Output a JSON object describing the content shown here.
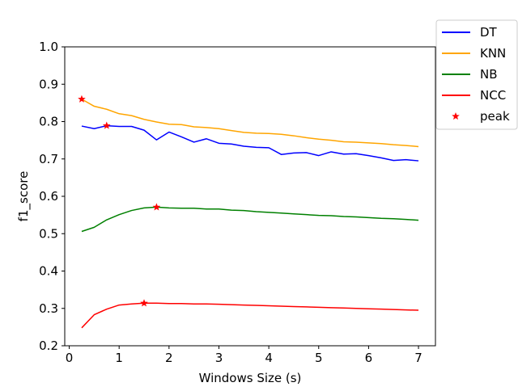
{
  "chart_data": {
    "type": "line",
    "title": "",
    "xlabel": "Windows Size (s)",
    "ylabel": "f1_score",
    "xlim": [
      -0.09,
      7.34
    ],
    "ylim": [
      0.2,
      1.0
    ],
    "xticks": [
      0,
      1,
      2,
      3,
      4,
      5,
      6,
      7
    ],
    "xtick_labels": [
      "0",
      "1",
      "2",
      "3",
      "4",
      "5",
      "6",
      "7"
    ],
    "yticks": [
      0.2,
      0.3,
      0.4,
      0.5,
      0.6,
      0.7,
      0.8,
      0.9,
      1.0
    ],
    "ytick_labels": [
      "0.2",
      "0.3",
      "0.4",
      "0.5",
      "0.6",
      "0.7",
      "0.8",
      "0.9",
      "1.0"
    ],
    "grid": false,
    "legend_position": "outside top-right",
    "x": [
      0.25,
      0.5,
      0.75,
      1.0,
      1.25,
      1.5,
      1.75,
      2.0,
      2.25,
      2.5,
      2.75,
      3.0,
      3.25,
      3.5,
      3.75,
      4.0,
      4.25,
      4.5,
      4.75,
      5.0,
      5.25,
      5.5,
      5.75,
      6.0,
      6.25,
      6.5,
      6.75,
      7.0
    ],
    "series": [
      {
        "name": "DT",
        "color": "#0000ff",
        "values": [
          0.788,
          0.781,
          0.789,
          0.787,
          0.787,
          0.777,
          0.751,
          0.772,
          0.759,
          0.745,
          0.754,
          0.742,
          0.74,
          0.734,
          0.731,
          0.73,
          0.712,
          0.716,
          0.717,
          0.709,
          0.719,
          0.713,
          0.714,
          0.709,
          0.703,
          0.696,
          0.698,
          0.695
        ]
      },
      {
        "name": "KNN",
        "color": "#ffa500",
        "values": [
          0.86,
          0.841,
          0.833,
          0.821,
          0.816,
          0.806,
          0.799,
          0.793,
          0.792,
          0.786,
          0.784,
          0.781,
          0.776,
          0.771,
          0.769,
          0.768,
          0.766,
          0.762,
          0.757,
          0.753,
          0.75,
          0.746,
          0.745,
          0.743,
          0.741,
          0.738,
          0.736,
          0.733
        ]
      },
      {
        "name": "NB",
        "color": "#008000",
        "values": [
          0.506,
          0.517,
          0.537,
          0.551,
          0.562,
          0.569,
          0.571,
          0.569,
          0.568,
          0.568,
          0.566,
          0.566,
          0.563,
          0.562,
          0.559,
          0.557,
          0.555,
          0.553,
          0.551,
          0.549,
          0.548,
          0.546,
          0.545,
          0.543,
          0.541,
          0.54,
          0.538,
          0.536
        ]
      },
      {
        "name": "NCC",
        "color": "#ff0000",
        "values": [
          0.248,
          0.283,
          0.298,
          0.309,
          0.312,
          0.314,
          0.314,
          0.313,
          0.313,
          0.312,
          0.312,
          0.311,
          0.31,
          0.309,
          0.308,
          0.307,
          0.306,
          0.305,
          0.304,
          0.303,
          0.302,
          0.301,
          0.3,
          0.299,
          0.298,
          0.297,
          0.296,
          0.295
        ]
      }
    ],
    "peaks": {
      "name": "peak",
      "color": "#ff0000",
      "marker": "star",
      "points": [
        {
          "x": 0.25,
          "y": 0.86
        },
        {
          "x": 0.75,
          "y": 0.789
        },
        {
          "x": 1.75,
          "y": 0.571
        },
        {
          "x": 1.5,
          "y": 0.314
        }
      ]
    }
  }
}
